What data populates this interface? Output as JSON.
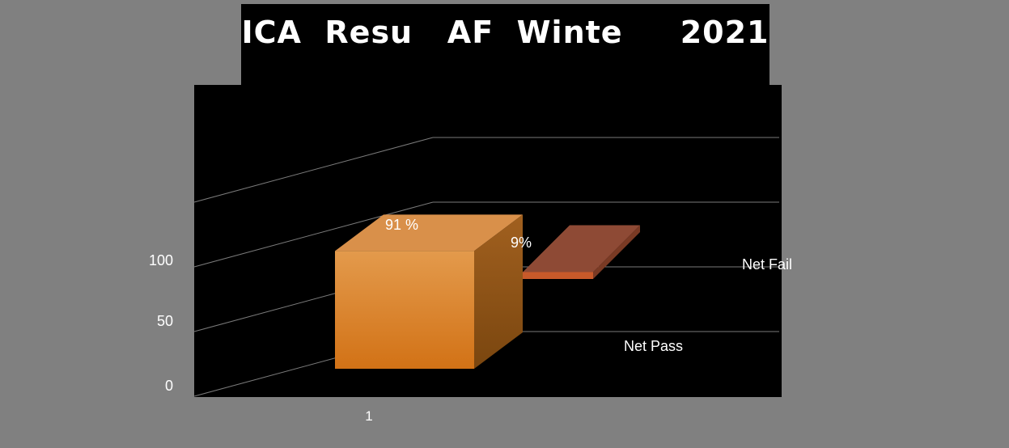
{
  "chart_data": {
    "type": "bar",
    "title": "ICA  Resu   AF  Winte     2021",
    "categories": [
      "1"
    ],
    "series": [
      {
        "name": "Net  Pass",
        "values": [
          91
        ],
        "label": "91 %",
        "color": "#E08A2C"
      },
      {
        "name": "Net Fail",
        "values": [
          9
        ],
        "label": "9%",
        "color": "#C85A2A"
      }
    ],
    "yticks": [
      {
        "value": 0,
        "label": "0"
      },
      {
        "value": 50,
        "label": "50"
      },
      {
        "value": 100,
        "label": "100"
      }
    ],
    "ylim": [
      0,
      150
    ],
    "grid": true,
    "three_d": true
  }
}
